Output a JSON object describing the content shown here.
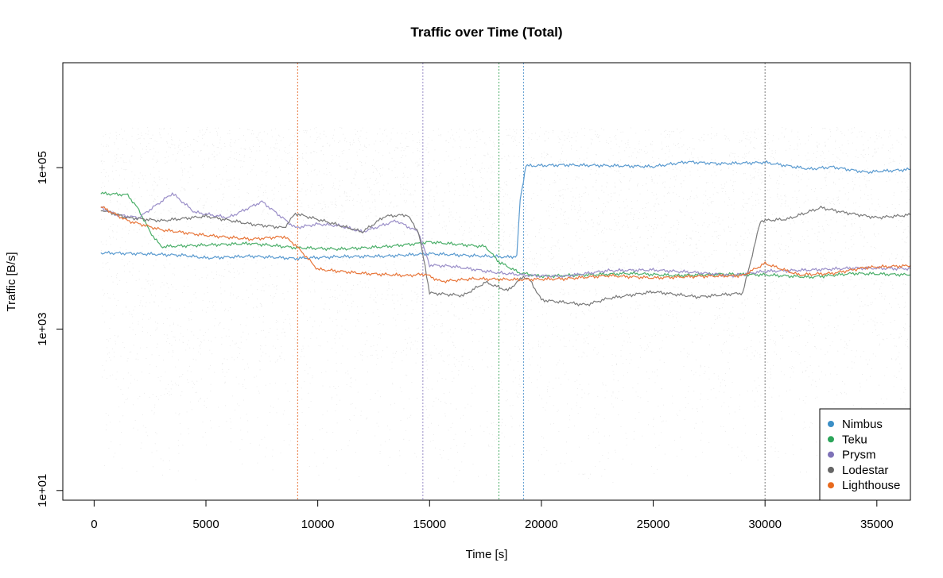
{
  "chart_data": {
    "type": "line",
    "title": "Traffic over Time (Total)",
    "xlabel": "Time [s]",
    "ylabel": "Traffic [B/s]",
    "xlim": [
      -1400,
      36500
    ],
    "ylim_log10": [
      0.88,
      6.3
    ],
    "y_scale": "log",
    "grid": false,
    "legend_position": "bottom-right",
    "x_ticks": [
      0,
      5000,
      10000,
      15000,
      20000,
      25000,
      30000,
      35000
    ],
    "x_tick_labels": [
      "0",
      "5000",
      "10000",
      "15000",
      "20000",
      "25000",
      "30000",
      "35000"
    ],
    "y_ticks": [
      10,
      1000,
      100000
    ],
    "y_tick_labels": [
      "1e+01",
      "1e+03",
      "1e+05"
    ],
    "series": [
      {
        "name": "Nimbus",
        "color": "#5b9bd0",
        "legend_color": "#3b8fc6",
        "vline_x": 19200,
        "points": [
          [
            300,
            8800
          ],
          [
            2000,
            8600
          ],
          [
            4000,
            8200
          ],
          [
            5000,
            7600
          ],
          [
            7000,
            8000
          ],
          [
            9000,
            7500
          ],
          [
            11000,
            7900
          ],
          [
            13000,
            8000
          ],
          [
            15000,
            8600
          ],
          [
            17000,
            8100
          ],
          [
            18500,
            7800
          ],
          [
            18900,
            8000
          ],
          [
            19050,
            40000
          ],
          [
            19200,
            70000
          ],
          [
            19300,
            105000
          ],
          [
            21000,
            108000
          ],
          [
            23000,
            106000
          ],
          [
            25000,
            103000
          ],
          [
            26500,
            118000
          ],
          [
            28000,
            112000
          ],
          [
            30000,
            116000
          ],
          [
            32000,
            96000
          ],
          [
            33000,
            102000
          ],
          [
            34500,
            88000
          ],
          [
            36500,
            95000
          ]
        ]
      },
      {
        "name": "Teku",
        "color": "#4caf6a",
        "legend_color": "#2ca55a",
        "vline_x": 18100,
        "points": [
          [
            300,
            48000
          ],
          [
            1500,
            46000
          ],
          [
            2000,
            30000
          ],
          [
            2500,
            16000
          ],
          [
            3000,
            10500
          ],
          [
            5000,
            11000
          ],
          [
            7000,
            11500
          ],
          [
            9000,
            10200
          ],
          [
            11000,
            9800
          ],
          [
            13000,
            10500
          ],
          [
            14500,
            11500
          ],
          [
            15000,
            12000
          ],
          [
            17500,
            10500
          ],
          [
            18100,
            6800
          ],
          [
            19000,
            5000
          ],
          [
            20000,
            4500
          ],
          [
            22000,
            4700
          ],
          [
            24000,
            4900
          ],
          [
            26000,
            4600
          ],
          [
            28000,
            4800
          ],
          [
            30000,
            4700
          ],
          [
            32000,
            4400
          ],
          [
            34000,
            4900
          ],
          [
            36500,
            4700
          ]
        ]
      },
      {
        "name": "Prysm",
        "color": "#9a8ec8",
        "legend_color": "#7e72b8",
        "vline_x": 14700,
        "points": [
          [
            300,
            32000
          ],
          [
            1000,
            26000
          ],
          [
            2000,
            24000
          ],
          [
            3500,
            48000
          ],
          [
            4500,
            28000
          ],
          [
            6000,
            24000
          ],
          [
            7500,
            38000
          ],
          [
            8500,
            23000
          ],
          [
            9000,
            18000
          ],
          [
            10000,
            20000
          ],
          [
            11000,
            19000
          ],
          [
            12000,
            16000
          ],
          [
            13500,
            22000
          ],
          [
            14500,
            16000
          ],
          [
            15000,
            6200
          ],
          [
            16000,
            6000
          ],
          [
            18000,
            5000
          ],
          [
            19500,
            4600
          ],
          [
            21000,
            4500
          ],
          [
            23000,
            5300
          ],
          [
            25000,
            5400
          ],
          [
            27000,
            5000
          ],
          [
            28500,
            4600
          ],
          [
            30000,
            5200
          ],
          [
            32000,
            5400
          ],
          [
            34000,
            5700
          ],
          [
            36500,
            5600
          ]
        ]
      },
      {
        "name": "Lodestar",
        "color": "#7a7a7a",
        "legend_color": "#666666",
        "vline_x": 30000,
        "points": [
          [
            300,
            30000
          ],
          [
            1500,
            24000
          ],
          [
            3000,
            22000
          ],
          [
            5000,
            25000
          ],
          [
            7000,
            20000
          ],
          [
            8500,
            18000
          ],
          [
            9000,
            27000
          ],
          [
            10500,
            21000
          ],
          [
            12000,
            16000
          ],
          [
            13000,
            25000
          ],
          [
            14000,
            26000
          ],
          [
            14500,
            16000
          ],
          [
            14800,
            6000
          ],
          [
            15000,
            2800
          ],
          [
            16500,
            2600
          ],
          [
            17500,
            3800
          ],
          [
            18500,
            3000
          ],
          [
            19200,
            4500
          ],
          [
            19500,
            4000
          ],
          [
            20000,
            2300
          ],
          [
            22000,
            2000
          ],
          [
            23000,
            2400
          ],
          [
            25000,
            2900
          ],
          [
            27000,
            2500
          ],
          [
            29000,
            2800
          ],
          [
            29500,
            10000
          ],
          [
            29800,
            22000
          ],
          [
            31000,
            23000
          ],
          [
            32500,
            32000
          ],
          [
            33500,
            28000
          ],
          [
            35000,
            24000
          ],
          [
            36500,
            26000
          ]
        ]
      },
      {
        "name": "Lighthouse",
        "color": "#e8763a",
        "legend_color": "#e86a1e",
        "vline_x": 9100,
        "points": [
          [
            300,
            33000
          ],
          [
            1500,
            22000
          ],
          [
            3000,
            17000
          ],
          [
            5000,
            14500
          ],
          [
            7000,
            13000
          ],
          [
            8500,
            14000
          ],
          [
            9000,
            11000
          ],
          [
            10000,
            5500
          ],
          [
            12000,
            4900
          ],
          [
            14000,
            4600
          ],
          [
            14800,
            4800
          ],
          [
            15500,
            3900
          ],
          [
            17000,
            4200
          ],
          [
            19000,
            4100
          ],
          [
            21000,
            4200
          ],
          [
            23000,
            4600
          ],
          [
            25000,
            4300
          ],
          [
            27000,
            4500
          ],
          [
            29000,
            4600
          ],
          [
            30000,
            6500
          ],
          [
            31500,
            4700
          ],
          [
            33000,
            4900
          ],
          [
            34500,
            5800
          ],
          [
            36500,
            6100
          ]
        ]
      }
    ]
  }
}
